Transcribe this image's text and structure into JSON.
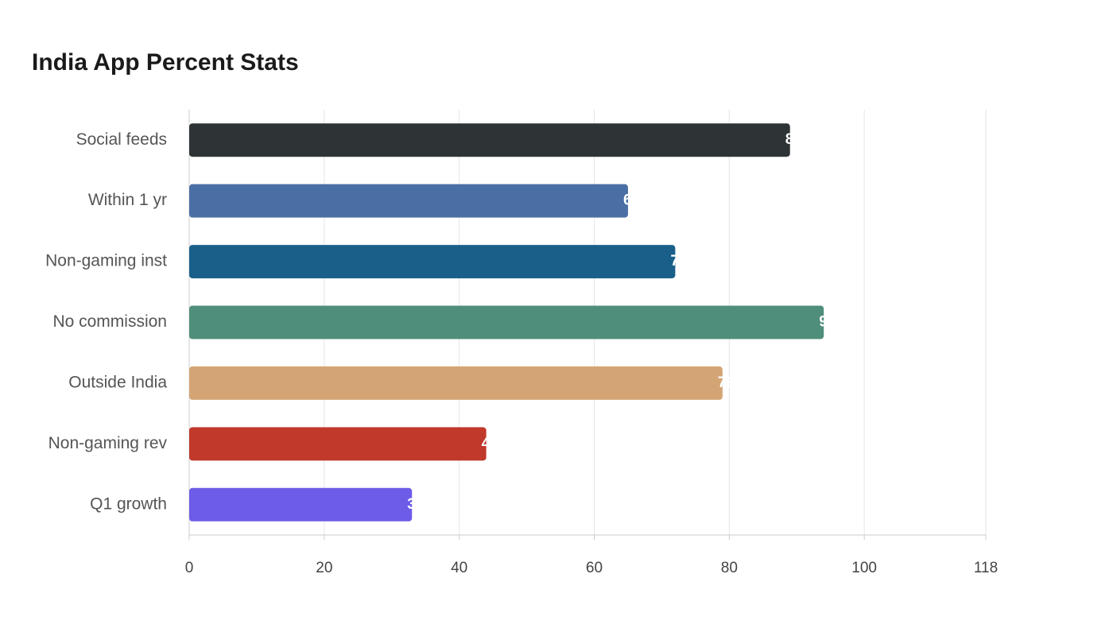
{
  "chart_data": {
    "type": "bar",
    "orientation": "horizontal",
    "title": "India App Percent Stats",
    "categories": [
      "Social feeds",
      "Within 1 yr",
      "Non-gaming inst",
      "No commission",
      "Outside India",
      "Non-gaming rev",
      "Q1 growth"
    ],
    "values": [
      89,
      65,
      72,
      94,
      79,
      44,
      33
    ],
    "colors": [
      "#2e3436",
      "#4a6fa5",
      "#1a5f8a",
      "#4f8e7b",
      "#d4a574",
      "#c0392b",
      "#6c5ce7"
    ],
    "xlim": [
      0,
      118
    ],
    "xticks": [
      0,
      20,
      40,
      60,
      80,
      100,
      118
    ],
    "grid": true
  }
}
